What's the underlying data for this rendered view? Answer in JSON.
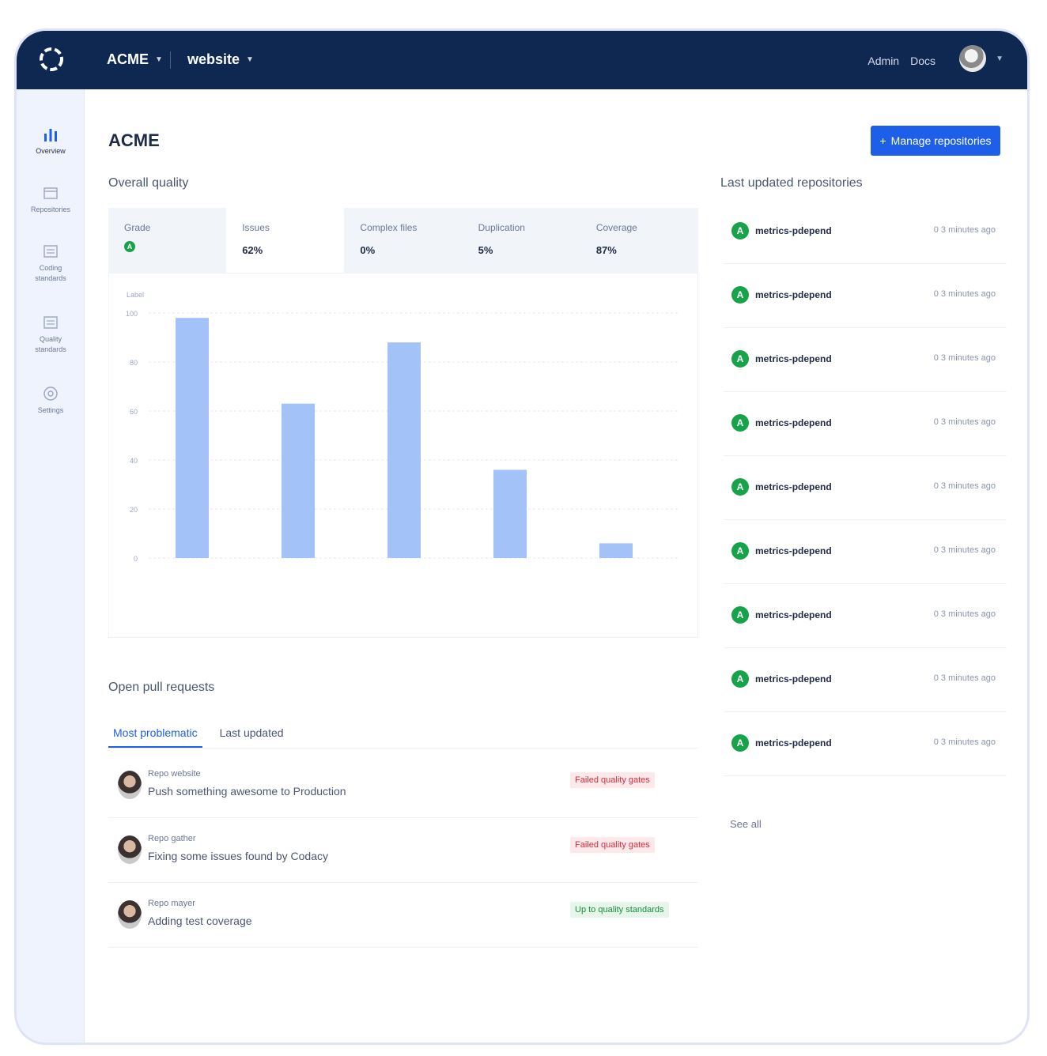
{
  "topbar": {
    "org": "ACME",
    "project": "website",
    "links": [
      "Admin",
      "Docs"
    ]
  },
  "sidebar": {
    "items": [
      {
        "label": "Overview",
        "icon": "bar-chart-icon"
      },
      {
        "label": "Repositories",
        "icon": "folder-icon"
      },
      {
        "label": "Coding standards",
        "icon": "list-icon"
      },
      {
        "label": "Quality standards",
        "icon": "list-icon"
      },
      {
        "label": "Settings",
        "icon": "gear-icon"
      }
    ]
  },
  "main": {
    "title": "ACME",
    "manage_button": "Manage repositories",
    "overall_quality_label": "Overall quality",
    "last_updated_label": "Last updated repositories",
    "open_pr_label": "Open pull requests",
    "see_all": "See all"
  },
  "metrics": [
    {
      "label": "Grade",
      "value": "A"
    },
    {
      "label": "Issues",
      "value": "62%"
    },
    {
      "label": "Complex files",
      "value": "0%"
    },
    {
      "label": "Duplication",
      "value": "5%"
    },
    {
      "label": "Coverage",
      "value": "87%"
    }
  ],
  "chart_data": {
    "type": "bar",
    "ylabel": "Label",
    "ylim": [
      0,
      100
    ],
    "yticks": [
      "100",
      "80",
      "60",
      "40",
      "20",
      "0"
    ],
    "categories": [
      "",
      "",
      "",
      "",
      ""
    ],
    "values": [
      98,
      63,
      88,
      36,
      6
    ],
    "bar_color": "#a3c2f8",
    "grid": true
  },
  "pr_tabs": [
    "Most problematic",
    "Last updated"
  ],
  "pull_requests": [
    {
      "repo": "Repo website",
      "title": "Push something awesome to Production",
      "status": "Failed quality gates",
      "status_type": "fail"
    },
    {
      "repo": "Repo gather",
      "title": "Fixing some issues found by Codacy",
      "status": "Failed quality gates",
      "status_type": "fail"
    },
    {
      "repo": "Repo mayer",
      "title": "Adding test coverage",
      "status": "Up to quality standards",
      "status_type": "ok"
    }
  ],
  "repositories": [
    {
      "grade": "A",
      "name": "metrics-pdepend",
      "time": "0 3 minutes ago"
    },
    {
      "grade": "A",
      "name": "metrics-pdepend",
      "time": "0 3 minutes ago"
    },
    {
      "grade": "A",
      "name": "metrics-pdepend",
      "time": "0 3 minutes ago"
    },
    {
      "grade": "A",
      "name": "metrics-pdepend",
      "time": "0 3 minutes ago"
    },
    {
      "grade": "A",
      "name": "metrics-pdepend",
      "time": "0 3 minutes ago"
    },
    {
      "grade": "A",
      "name": "metrics-pdepend",
      "time": "0 3 minutes ago"
    },
    {
      "grade": "A",
      "name": "metrics-pdepend",
      "time": "0 3 minutes ago"
    },
    {
      "grade": "A",
      "name": "metrics-pdepend",
      "time": "0 3 minutes ago"
    },
    {
      "grade": "A",
      "name": "metrics-pdepend",
      "time": "0 3 minutes ago"
    }
  ]
}
